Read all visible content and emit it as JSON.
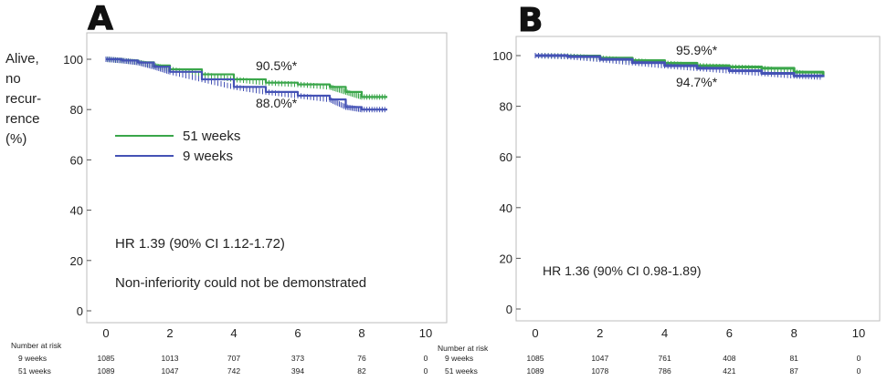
{
  "panels": [
    {
      "letter": "A",
      "ylabel_lines": [
        "Alive,",
        "no",
        "recur-",
        "rence",
        "(%)"
      ],
      "x_ticks": [
        "0",
        "2",
        "4",
        "6",
        "8",
        "10"
      ],
      "y_ticks": [
        "0",
        "20",
        "40",
        "60",
        "80",
        "100"
      ],
      "legend": [
        "51 weeks",
        "9 weeks"
      ],
      "annotations": [
        "90.5%*",
        "88.0%*"
      ],
      "hr_text": "HR 1.39 (90% CI 1.12-1.72)",
      "note_text": "Non-inferiority could not be demonstrated",
      "risk_title": "Number at risk",
      "risk_rows": [
        {
          "label": "9 weeks",
          "values": [
            "1085",
            "1013",
            "707",
            "373",
            "76",
            "0"
          ]
        },
        {
          "label": "51 weeks",
          "values": [
            "1089",
            "1047",
            "742",
            "394",
            "82",
            "0"
          ]
        }
      ]
    },
    {
      "letter": "B",
      "x_ticks": [
        "0",
        "2",
        "4",
        "6",
        "8",
        "10"
      ],
      "y_ticks": [
        "0",
        "20",
        "40",
        "60",
        "80",
        "100"
      ],
      "annotations": [
        "95.9%*",
        "94.7%*"
      ],
      "hr_text": "HR 1.36 (90% CI 0.98-1.89)",
      "risk_title": "Number at risk",
      "risk_rows": [
        {
          "label": "9 weeks",
          "values": [
            "1085",
            "1047",
            "761",
            "408",
            "81",
            "0"
          ]
        },
        {
          "label": "51 weeks",
          "values": [
            "1089",
            "1078",
            "786",
            "421",
            "87",
            "0"
          ]
        }
      ]
    }
  ],
  "colors": {
    "green": "#3aa64a",
    "blue": "#4452b5",
    "frame": "#bdbdbd"
  },
  "chart_data": [
    {
      "type": "line",
      "xlim": [
        0,
        10
      ],
      "ylim": [
        0,
        100
      ],
      "series": [
        {
          "name": "51 weeks",
          "color": "#3aa64a",
          "x": [
            0,
            0.5,
            1,
            1.5,
            2,
            3,
            4,
            5,
            6,
            7,
            7.5,
            8,
            8.8
          ],
          "y": [
            100,
            99.5,
            98.8,
            97.5,
            96,
            94,
            92,
            90.7,
            90,
            89,
            87,
            85,
            85
          ]
        },
        {
          "name": "9 weeks",
          "color": "#4452b5",
          "x": [
            0,
            0.5,
            1,
            1.5,
            2,
            3,
            4,
            5,
            6,
            7,
            7.5,
            8,
            8.8
          ],
          "y": [
            100,
            99.5,
            98.7,
            97,
            95,
            92,
            89,
            87,
            85.5,
            84,
            81,
            80,
            80
          ]
        }
      ]
    },
    {
      "type": "line",
      "xlim": [
        0,
        10
      ],
      "ylim": [
        0,
        100
      ],
      "series": [
        {
          "color": "#3aa64a",
          "x": [
            0,
            1,
            2,
            3,
            4,
            5,
            6,
            7,
            8,
            8.9
          ],
          "y": [
            100,
            99.8,
            99,
            98,
            97,
            96,
            95.5,
            95,
            93.5,
            92
          ]
        },
        {
          "color": "#4452b5",
          "x": [
            0,
            1,
            2,
            3,
            4,
            5,
            6,
            7,
            8,
            8.9
          ],
          "y": [
            100,
            99.6,
            98.5,
            97.2,
            96,
            95,
            94,
            93,
            92,
            91.5
          ]
        }
      ]
    }
  ]
}
